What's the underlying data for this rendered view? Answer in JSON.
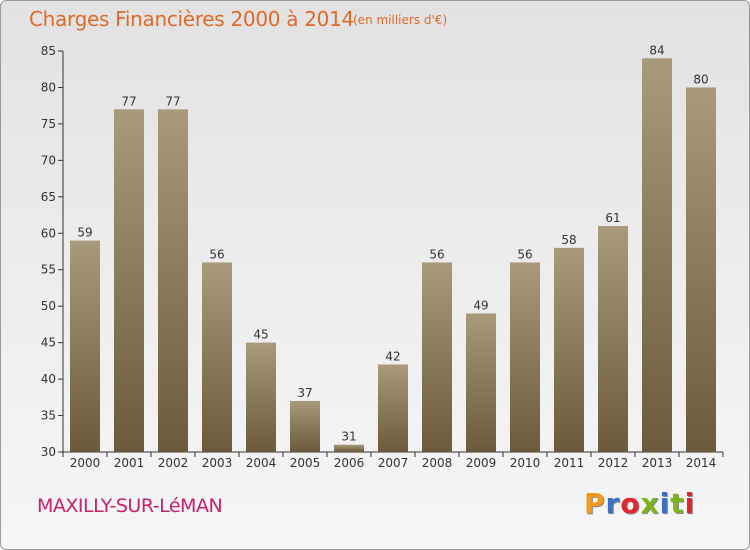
{
  "header": {
    "title": "Charges Financières 2000 à 2014",
    "subtitle": "(en milliers d'€)"
  },
  "footer": {
    "commune": "MAXILLY-SUR-LéMAN",
    "logo": "Proxiti",
    "logo_colors": [
      "#f29a18",
      "#3d6fc4",
      "#e2262b",
      "#7ab51d",
      "#3d6fc4",
      "#7ab51d",
      "#e2262b"
    ]
  },
  "colors": {
    "bar_top": "#a99a7c",
    "bar_bottom": "#6b5a3c",
    "title": "#e06a2a",
    "commune": "#c7206f"
  },
  "chart_data": {
    "type": "bar",
    "title": "Charges Financières 2000 à 2014",
    "subtitle": "(en milliers d'€)",
    "categories": [
      "2000",
      "2001",
      "2002",
      "2003",
      "2004",
      "2005",
      "2006",
      "2007",
      "2008",
      "2009",
      "2010",
      "2011",
      "2012",
      "2013",
      "2014"
    ],
    "values": [
      59,
      77,
      77,
      56,
      45,
      37,
      31,
      42,
      56,
      49,
      56,
      58,
      61,
      84,
      80
    ],
    "ylim": [
      30,
      85
    ],
    "yticks": [
      30,
      35,
      40,
      45,
      50,
      55,
      60,
      65,
      70,
      75,
      80,
      85
    ],
    "grid": false,
    "legend": "none"
  }
}
